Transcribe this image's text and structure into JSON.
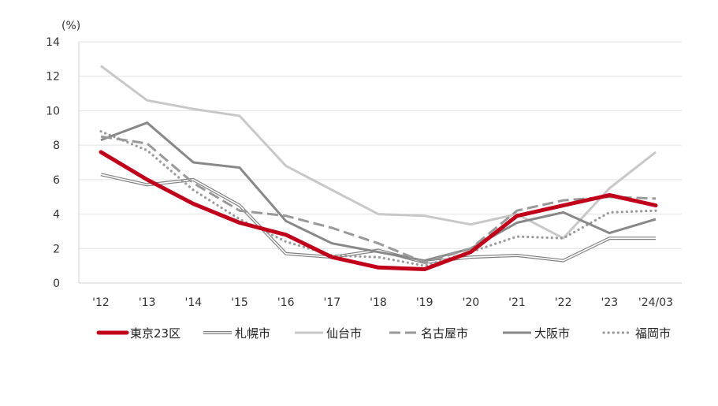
{
  "chart_data": {
    "type": "line",
    "unit_label": "(%)",
    "categories": [
      "'12",
      "'13",
      "'14",
      "'15",
      "'16",
      "'17",
      "'18",
      "'19",
      "'20",
      "'21",
      "'22",
      "'23",
      "'24/03"
    ],
    "ylim": [
      0,
      14
    ],
    "yticks": [
      0,
      2,
      4,
      6,
      8,
      10,
      12,
      14
    ],
    "grid": true,
    "legend_position": "bottom",
    "series": [
      {
        "name": "東京23区",
        "color": "#c0001b",
        "style": "thick",
        "values": [
          7.6,
          6.0,
          4.6,
          3.5,
          2.8,
          1.5,
          0.9,
          0.8,
          1.8,
          3.9,
          4.5,
          5.1,
          4.5
        ]
      },
      {
        "name": "札幌市",
        "color": "#808080",
        "style": "double",
        "values": [
          6.3,
          5.7,
          6.0,
          4.5,
          1.7,
          1.5,
          1.9,
          1.2,
          1.5,
          1.6,
          1.3,
          2.6,
          2.6
        ]
      },
      {
        "name": "仙台市",
        "color": "#c8c8c8",
        "style": "solid",
        "values": [
          12.6,
          10.6,
          10.1,
          9.7,
          6.8,
          5.4,
          4.0,
          3.9,
          3.4,
          4.0,
          2.6,
          5.5,
          7.6
        ]
      },
      {
        "name": "名古屋市",
        "color": "#999999",
        "style": "dashed",
        "values": [
          8.5,
          8.1,
          5.8,
          4.2,
          3.9,
          3.2,
          2.3,
          1.2,
          2.0,
          4.2,
          4.8,
          5.0,
          4.9
        ]
      },
      {
        "name": "大阪市",
        "color": "#888888",
        "style": "solid",
        "values": [
          8.3,
          9.3,
          7.0,
          6.7,
          3.6,
          2.3,
          1.8,
          1.3,
          2.0,
          3.5,
          4.1,
          2.9,
          3.7
        ]
      },
      {
        "name": "福岡市",
        "color": "#9a9a9a",
        "style": "dotted",
        "values": [
          8.8,
          7.7,
          5.4,
          3.7,
          2.4,
          1.6,
          1.5,
          1.0,
          1.8,
          2.7,
          2.6,
          4.1,
          4.2
        ]
      }
    ]
  }
}
